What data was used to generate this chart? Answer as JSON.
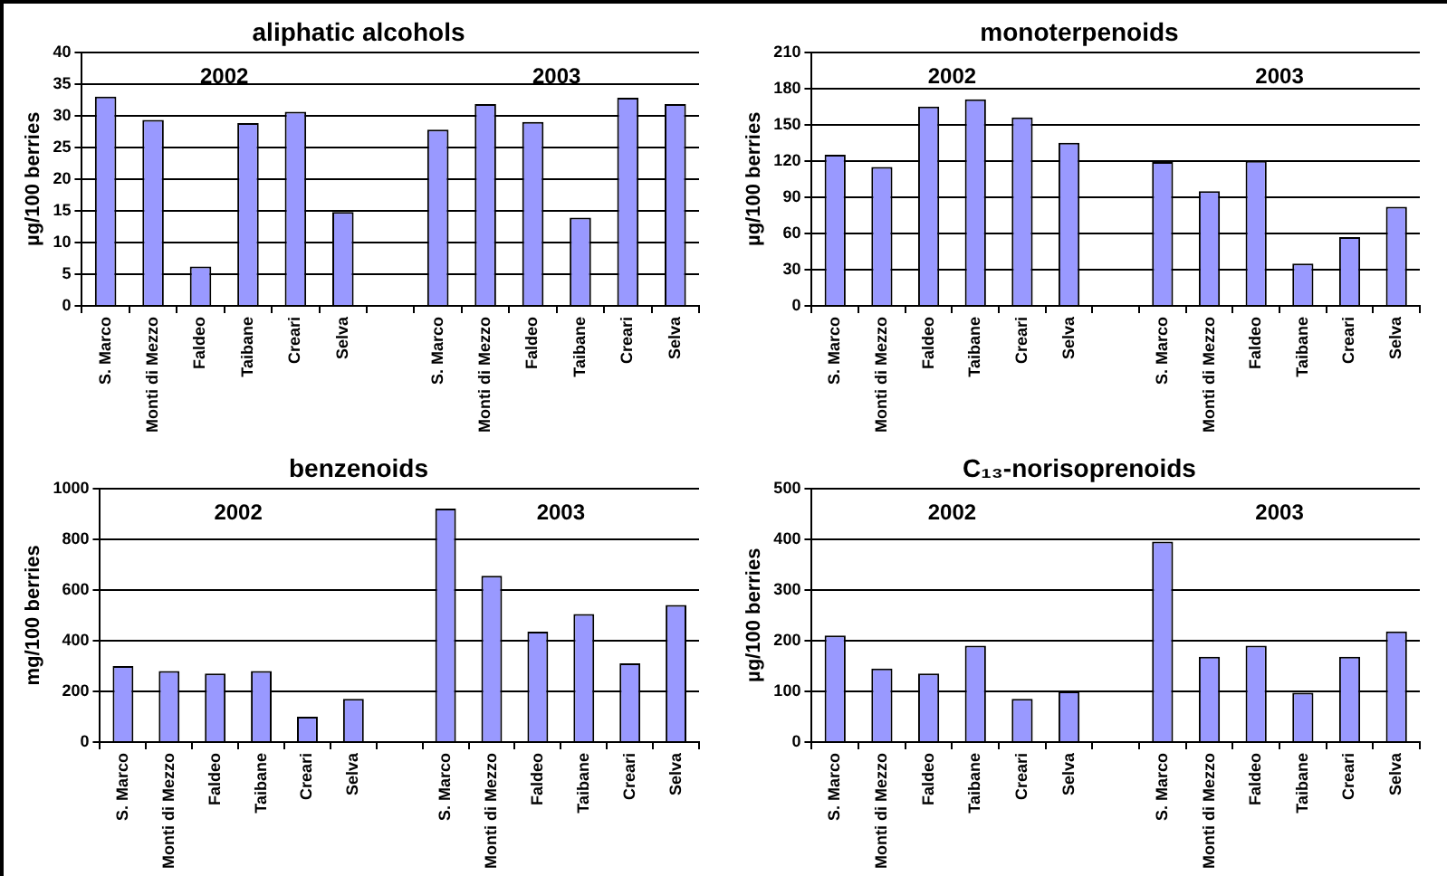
{
  "chart_data": [
    {
      "type": "bar",
      "title": "aliphatic alcohols",
      "ylabel": "µg/100 berries",
      "categories": [
        "S. Marco",
        "Monti di Mezzo",
        "Faldeo",
        "Taibane",
        "Creari",
        "Selva",
        null,
        "S. Marco",
        "Monti di Mezzo",
        "Faldeo",
        "Taibane",
        "Creari",
        "Selva"
      ],
      "values": [
        33,
        29.3,
        6.2,
        28.8,
        30.6,
        14.8,
        null,
        27.8,
        31.8,
        29,
        13.9,
        32.8,
        31.8
      ],
      "color": "#9999ff",
      "ylim": [
        0,
        40
      ],
      "yticks": [
        0,
        5,
        10,
        15,
        20,
        25,
        30,
        35,
        40
      ],
      "grid": "y",
      "annotations": [
        "2002",
        "2003"
      ]
    },
    {
      "type": "bar",
      "title": "monoterpenoids",
      "ylabel": "µg/100 berries",
      "categories": [
        "S. Marco",
        "Monti di Mezzo",
        "Faldeo",
        "Taibane",
        "Creari",
        "Selva",
        null,
        "S. Marco",
        "Monti di Mezzo",
        "Faldeo",
        "Taibane",
        "Creari",
        "Selva"
      ],
      "values": [
        125,
        115,
        165,
        171,
        156,
        135,
        null,
        119,
        95,
        120,
        35,
        57,
        82
      ],
      "color": "#9999ff",
      "ylim": [
        0,
        210
      ],
      "yticks": [
        0,
        30,
        60,
        90,
        120,
        150,
        180,
        210
      ],
      "grid": "y",
      "annotations": [
        "2002",
        "2003"
      ]
    },
    {
      "type": "bar",
      "title": "benzenoids",
      "ylabel": "mg/100 berries",
      "categories": [
        "S. Marco",
        "Monti di Mezzo",
        "Faldeo",
        "Taibane",
        "Creari",
        "Selva",
        null,
        "S. Marco",
        "Monti di Mezzo",
        "Faldeo",
        "Taibane",
        "Creari",
        "Selva"
      ],
      "values": [
        300,
        280,
        270,
        280,
        100,
        170,
        null,
        920,
        655,
        435,
        505,
        310,
        540
      ],
      "color": "#9999ff",
      "ylim": [
        0,
        1000
      ],
      "yticks": [
        0,
        200,
        400,
        600,
        800,
        1000
      ],
      "grid": "y",
      "annotations": [
        "2002",
        "2003"
      ]
    },
    {
      "type": "bar",
      "title": "C₁₃-norisoprenoids",
      "ylabel": "µg/100 berries",
      "categories": [
        "S. Marco",
        "Monti di Mezzo",
        "Faldeo",
        "Taibane",
        "Creari",
        "Selva",
        null,
        "S. Marco",
        "Monti di Mezzo",
        "Faldeo",
        "Taibane",
        "Creari",
        "Selva"
      ],
      "values": [
        210,
        145,
        135,
        190,
        85,
        100,
        null,
        395,
        168,
        190,
        97,
        168,
        218
      ],
      "color": "#9999ff",
      "ylim": [
        0,
        500
      ],
      "yticks": [
        0,
        100,
        200,
        300,
        400,
        500
      ],
      "grid": "y",
      "annotations": [
        "2002",
        "2003"
      ]
    }
  ]
}
